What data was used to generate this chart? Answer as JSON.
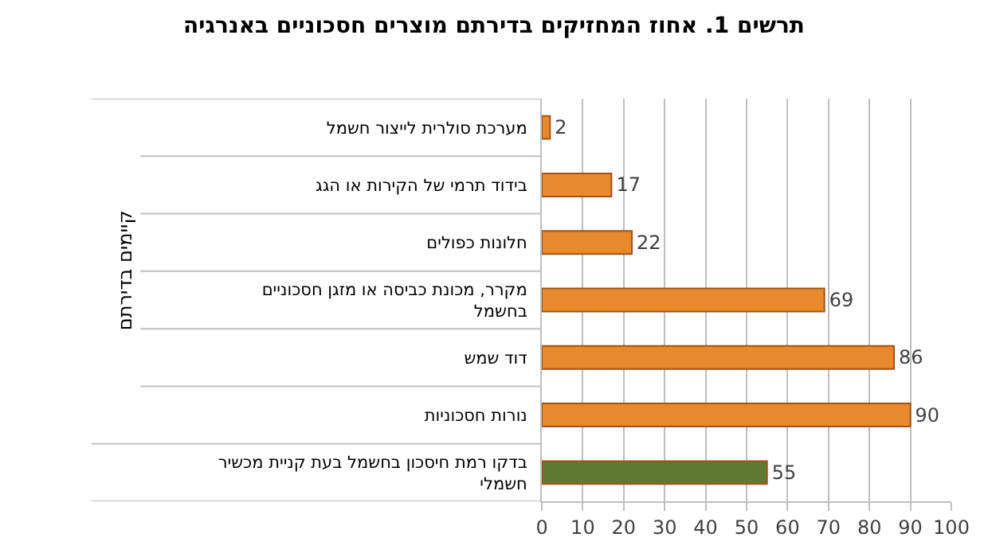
{
  "chart_data": {
    "type": "bar",
    "orientation": "horizontal",
    "title": "תרשים 1. אחוז המחזיקים בדירתם מוצרים חסכוניים באנרגיה",
    "categories": [
      "מערכת סולרית לייצור חשמל",
      "בידוד תרמי של הקירות או הגג",
      "חלונות כפולים",
      "מקרר, מכונת כביסה או מזגן חסכוניים בחשמל",
      "דוד שמש",
      "נורות חסכוניות",
      "בדקו רמת חיסכון בחשמל בעת קניית מכשיר חשמלי"
    ],
    "values": [
      2,
      17,
      22,
      69,
      86,
      90,
      55
    ],
    "colors": [
      "#e8892c",
      "#e8892c",
      "#e8892c",
      "#e8892c",
      "#e8892c",
      "#e8892c",
      "#5e7a2e"
    ],
    "data_labels": true,
    "xlim": [
      0,
      100
    ],
    "xticks": [
      0,
      10,
      20,
      30,
      40,
      50,
      60,
      70,
      80,
      90,
      100
    ],
    "grid": "x",
    "legend": false,
    "annotations": [
      "קיימים בדירתם"
    ]
  }
}
